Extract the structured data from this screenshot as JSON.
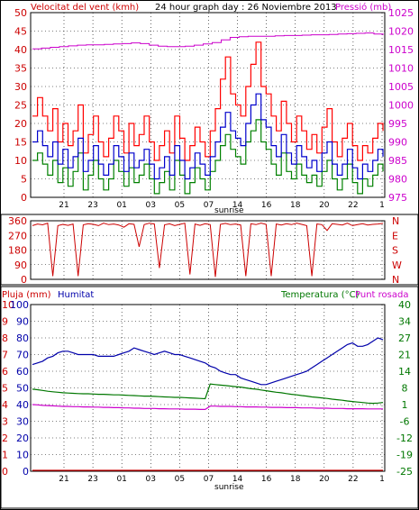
{
  "colors": {
    "wind": "#0000cc",
    "gust": "#ff0000",
    "avg": "#008000",
    "pressure": "#cc00cc",
    "direction": "#cc0000",
    "humidity": "#0000aa",
    "temperature": "#007700",
    "dewpoint": "#cc00cc",
    "rain": "#cc0000",
    "grid": "#000000",
    "frame": "#000000"
  },
  "chart_data": [
    {
      "type": "line",
      "title": "24 hour graph day : 26 Noviembre 2013",
      "left_axis_label": "Velocitat del vent (kmh)",
      "right_axis_label": "Pressió (mb)",
      "sunrise_label": "sunrise",
      "x_ticks": [
        "21",
        "23",
        "01",
        "03",
        "05",
        "07",
        "14",
        "16",
        "18",
        "20",
        "22",
        "1"
      ],
      "ylim": [
        0,
        50
      ],
      "y_ticks": [
        "0",
        "5",
        "10",
        "15",
        "20",
        "25",
        "30",
        "35",
        "40",
        "45",
        "50"
      ],
      "y2lim": [
        975,
        1025
      ],
      "y2_ticks": [
        "975",
        "980",
        "985",
        "990",
        "995",
        "1000",
        "1005",
        "1010",
        "1015",
        "1020",
        "1025"
      ],
      "series": [
        {
          "key": "gust",
          "axis": "left",
          "values": [
            22,
            27,
            22,
            18,
            24,
            15,
            20,
            14,
            18,
            25,
            12,
            17,
            22,
            15,
            11,
            16,
            22,
            18,
            12,
            20,
            14,
            17,
            22,
            15,
            10,
            14,
            18,
            12,
            22,
            16,
            10,
            14,
            19,
            15,
            11,
            18,
            24,
            32,
            38,
            28,
            25,
            22,
            30,
            36,
            42,
            30,
            28,
            22,
            18,
            26,
            20,
            15,
            22,
            18,
            13,
            17,
            12,
            19,
            24,
            15,
            11,
            16,
            20,
            14,
            10,
            14,
            12,
            16,
            20,
            18
          ]
        },
        {
          "key": "wind",
          "axis": "left",
          "values": [
            15,
            18,
            14,
            11,
            15,
            9,
            13,
            8,
            11,
            16,
            7,
            10,
            14,
            9,
            6,
            9,
            14,
            11,
            7,
            12,
            8,
            10,
            13,
            9,
            5,
            8,
            11,
            6,
            14,
            10,
            5,
            8,
            12,
            9,
            6,
            11,
            15,
            19,
            23,
            18,
            16,
            14,
            20,
            25,
            28,
            21,
            19,
            14,
            11,
            17,
            12,
            9,
            14,
            11,
            8,
            10,
            7,
            12,
            15,
            9,
            6,
            9,
            13,
            8,
            5,
            9,
            7,
            10,
            13,
            11
          ]
        },
        {
          "key": "avg",
          "axis": "left",
          "values": [
            10,
            12,
            9,
            6,
            10,
            4,
            8,
            3,
            7,
            12,
            2,
            6,
            10,
            5,
            2,
            5,
            10,
            7,
            3,
            8,
            4,
            6,
            9,
            5,
            1,
            4,
            7,
            2,
            10,
            6,
            1,
            4,
            8,
            5,
            2,
            7,
            10,
            14,
            17,
            13,
            11,
            9,
            15,
            18,
            21,
            15,
            13,
            9,
            6,
            12,
            7,
            5,
            9,
            6,
            4,
            6,
            3,
            7,
            10,
            5,
            2,
            5,
            9,
            4,
            1,
            5,
            3,
            6,
            9,
            7
          ]
        },
        {
          "key": "pressure",
          "axis": "right",
          "values": [
            1015.2,
            1015.4,
            1015.6,
            1015.8,
            1016,
            1016.2,
            1016.3,
            1016.3,
            1016.4,
            1016.5,
            1016.6,
            1016.8,
            1016.6,
            1016.2,
            1015.9,
            1015.8,
            1015.8,
            1015.9,
            1016.2,
            1016.5,
            1016.9,
            1017.6,
            1018.3,
            1018.5,
            1018.6,
            1018.6,
            1018.6,
            1018.7,
            1018.8,
            1018.8,
            1018.9,
            1019,
            1019,
            1019.1,
            1019.2,
            1019.3,
            1019.4,
            1019.5,
            1019.2,
            1018.9
          ]
        }
      ]
    },
    {
      "type": "line",
      "y_ticks": [
        "0",
        "90",
        "180",
        "270",
        "360"
      ],
      "direction_labels": [
        "N",
        "W",
        "S",
        "E",
        "N"
      ],
      "x_ticks": [
        "21",
        "23",
        "01",
        "03",
        "05",
        "07",
        "14",
        "16",
        "18",
        "20",
        "22",
        "1"
      ],
      "ylim": [
        0,
        360
      ],
      "series": [
        {
          "key": "direction",
          "values": [
            330,
            340,
            335,
            345,
            20,
            330,
            338,
            332,
            340,
            20,
            335,
            342,
            338,
            330,
            345,
            336,
            340,
            334,
            320,
            342,
            338,
            200,
            336,
            345,
            340,
            70,
            335,
            341,
            330,
            338,
            345,
            30,
            340,
            332,
            342,
            336,
            15,
            338,
            344,
            336,
            340,
            334,
            20,
            342,
            336,
            345,
            338,
            20,
            340,
            334,
            342,
            336,
            345,
            338,
            330,
            20,
            340,
            336,
            300,
            342,
            338,
            334,
            345,
            330,
            336,
            342,
            334,
            338,
            340,
            344
          ]
        }
      ]
    },
    {
      "type": "line",
      "left_axis_label": "Pluja (mm)",
      "humidity_label": "Humitat",
      "right_axis_label": "Temperatura (°C)",
      "dewpoint_label": "Punt rosada",
      "sunrise_label": "sunrise",
      "x_ticks": [
        "21",
        "23",
        "01",
        "03",
        "05",
        "07",
        "14",
        "16",
        "18",
        "20",
        "22",
        "1"
      ],
      "rain_ticks": [
        "0",
        "1",
        "2",
        "3",
        "4",
        "5",
        "6",
        "7",
        "8",
        "9",
        "10"
      ],
      "humidity_ticks": [
        "0",
        "10",
        "20",
        "30",
        "40",
        "50",
        "60",
        "70",
        "80",
        "90",
        "100"
      ],
      "ylim": [
        0,
        100
      ],
      "y2lim": [
        -25,
        40
      ],
      "temp_ticks": [
        "-25",
        "-19",
        "-12",
        "-6",
        "1",
        "8",
        "14",
        "21",
        "27",
        "34",
        "40"
      ],
      "series": [
        {
          "key": "humidity",
          "axis": "left",
          "values": [
            64,
            65,
            66,
            68,
            69,
            71,
            72,
            72,
            71,
            70,
            70,
            70,
            70,
            69,
            69,
            69,
            69,
            70,
            71,
            72,
            74,
            73,
            72,
            71,
            70,
            71,
            72,
            71,
            70,
            70,
            69,
            68,
            67,
            66,
            65,
            63,
            62,
            60,
            59,
            58,
            58,
            56,
            55,
            54,
            53,
            52,
            52,
            53,
            54,
            55,
            56,
            57,
            58,
            59,
            60,
            62,
            64,
            66,
            68,
            70,
            72,
            74,
            76,
            77,
            75,
            75,
            76,
            78,
            80,
            79
          ]
        },
        {
          "key": "temperature",
          "axis": "right",
          "values": [
            7,
            6.8,
            6.5,
            6.2,
            6,
            5.8,
            5.6,
            5.5,
            5.4,
            5.3,
            5.2,
            5.2,
            5.1,
            5,
            5,
            4.9,
            4.8,
            4.8,
            4.7,
            4.6,
            4.5,
            4.4,
            4.3,
            4.3,
            4.2,
            4.1,
            4,
            3.9,
            3.8,
            3.8,
            3.7,
            3.6,
            3.5,
            3.4,
            3.3,
            9,
            8.8,
            8.6,
            8.4,
            8.2,
            8,
            7.8,
            7.5,
            7.2,
            7,
            6.7,
            6.4,
            6.1,
            5.8,
            5.6,
            5.3,
            5,
            4.8,
            4.5,
            4.3,
            4,
            3.8,
            3.6,
            3.4,
            3.1,
            2.9,
            2.7,
            2.4,
            2.2,
            2,
            1.8,
            1.6,
            1.5,
            1.6,
            1.8
          ]
        },
        {
          "key": "dewpoint",
          "axis": "right",
          "values": [
            1,
            0.9,
            0.7,
            0.6,
            0.5,
            0.4,
            0.3,
            0.3,
            0.2,
            0.2,
            0.1,
            0.1,
            0,
            0,
            -0.1,
            -0.1,
            -0.2,
            -0.2,
            -0.3,
            -0.3,
            -0.4,
            -0.4,
            -0.5,
            -0.5,
            -0.5,
            -0.6,
            -0.6,
            -0.7,
            -0.7,
            -0.7,
            -0.8,
            -0.8,
            -0.8,
            -0.9,
            -0.9,
            0.4,
            0.4,
            0.3,
            0.3,
            0.3,
            0.2,
            0.2,
            0.1,
            0.1,
            0.1,
            0,
            0,
            -0.1,
            -0.1,
            -0.1,
            -0.2,
            -0.2,
            -0.2,
            -0.3,
            -0.3,
            -0.3,
            -0.4,
            -0.4,
            -0.4,
            -0.5,
            -0.5,
            -0.5,
            -0.6,
            -0.6,
            -0.6,
            -0.6,
            -0.7,
            -0.7,
            -0.7,
            -0.7
          ]
        },
        {
          "key": "rain",
          "axis": "left",
          "values": [
            0,
            0
          ]
        }
      ]
    }
  ]
}
